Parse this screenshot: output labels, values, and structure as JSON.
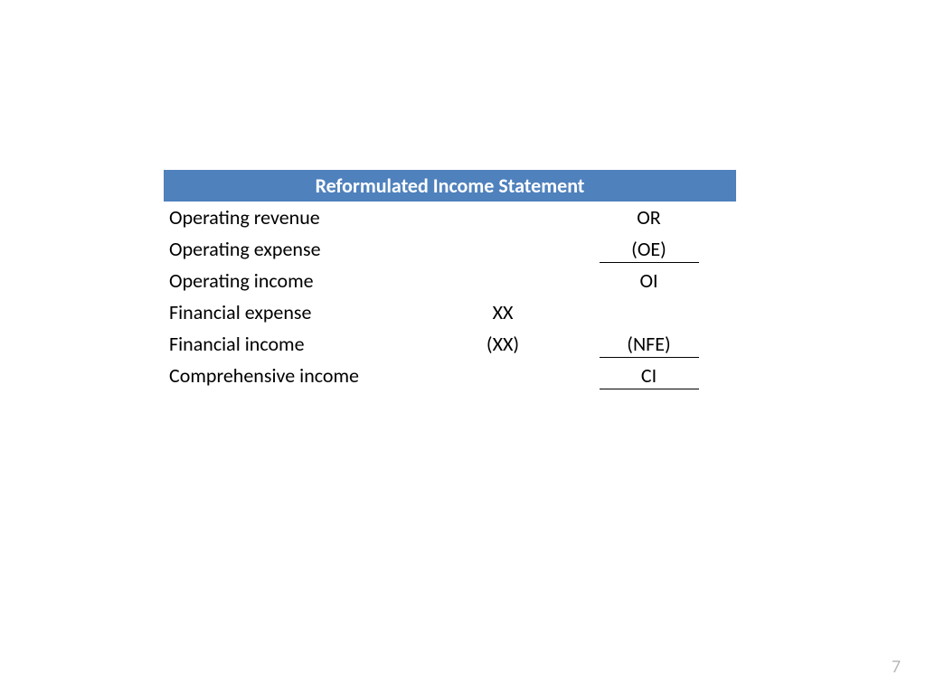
{
  "header": {
    "title": "Reformulated Income Statement"
  },
  "rows": [
    {
      "label": "Operating revenue",
      "mid": "",
      "val": "OR",
      "underline": false
    },
    {
      "label": "Operating expense",
      "mid": "",
      "val": "(OE)",
      "underline": true
    },
    {
      "label": "Operating income",
      "mid": "",
      "val": "OI",
      "underline": false
    },
    {
      "label": "Financial expense",
      "mid": "XX",
      "val": "",
      "underline": false
    },
    {
      "label": "Financial income",
      "mid": "(XX)",
      "val": "(NFE)",
      "underline": true
    },
    {
      "label": "Comprehensive income",
      "mid": "",
      "val": "CI",
      "underline": true
    }
  ],
  "page_number": "7",
  "style": {
    "header_bg": "#4f81bd",
    "header_color": "#ffffff",
    "text_color": "#000000",
    "page_num_color": "#b8b8b8",
    "background_color": "#ffffff",
    "font_family": "Calibri, Arial, sans-serif",
    "title_fontsize": 22,
    "body_fontsize": 22,
    "underline_color": "#000000"
  }
}
